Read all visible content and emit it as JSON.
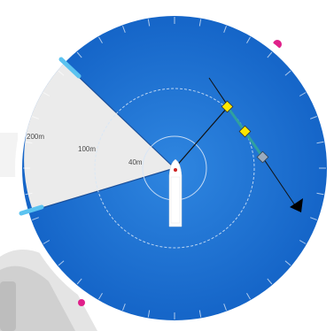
{
  "radar": {
    "range_labels": [
      "200m",
      "100m",
      "40m"
    ],
    "colors": {
      "water": "#1565c8",
      "water_center": "#2f86e0",
      "sector": "#ebebeb",
      "rim": "#ffffff",
      "ring": "#d6e6f7",
      "handle": "#5bc3f0",
      "track_line": "#111111",
      "projected_path": "#2fa0a0",
      "waypoint": "#ffe600",
      "waypoint_inactive": "#9aabbf",
      "target": "#000000",
      "edge_marker": "#e0208a",
      "boat": "#ffffff"
    },
    "waypoints": [
      {
        "name": "waypoint-1",
        "state": "active"
      },
      {
        "name": "waypoint-2",
        "state": "active"
      },
      {
        "name": "waypoint-3",
        "state": "inactive"
      }
    ],
    "target_icon": "triangle-target-icon",
    "vessel_icon": "own-vessel-icon"
  }
}
